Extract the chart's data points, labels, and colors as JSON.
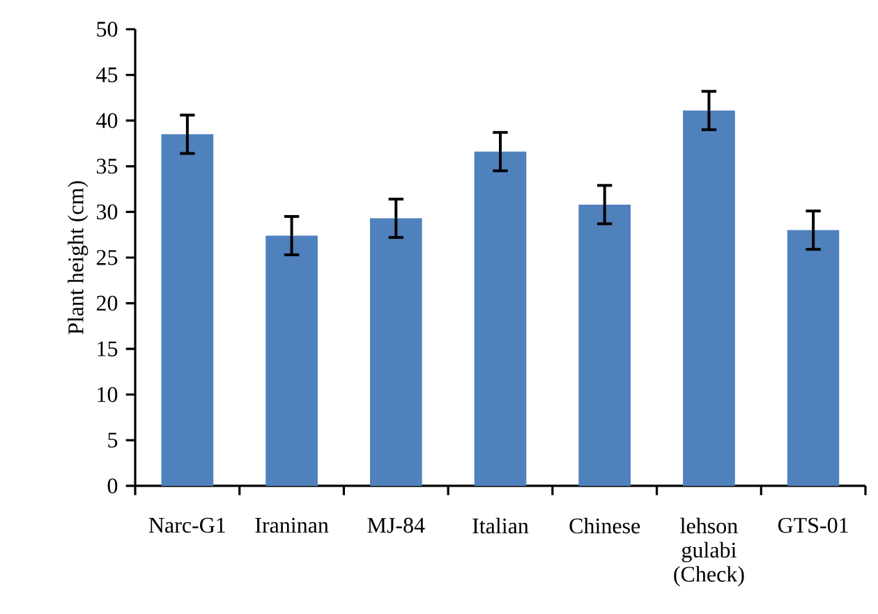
{
  "chart_data": {
    "type": "bar",
    "ylabel": "Plant height (cm)",
    "categories": [
      "Narc-G1",
      "Iraninan",
      "MJ-84",
      "Italian",
      "Chinese",
      "lehson gulabi (Check)",
      "GTS-01"
    ],
    "values": [
      38.5,
      27.4,
      29.3,
      36.6,
      30.8,
      41.1,
      28.0
    ],
    "errors": [
      2.1,
      2.1,
      2.1,
      2.1,
      2.1,
      2.1,
      2.1
    ],
    "color": "#4f81bd",
    "ylim": [
      0,
      50
    ],
    "yticks": [
      0,
      5,
      10,
      15,
      20,
      25,
      30,
      35,
      40,
      45,
      50
    ]
  }
}
